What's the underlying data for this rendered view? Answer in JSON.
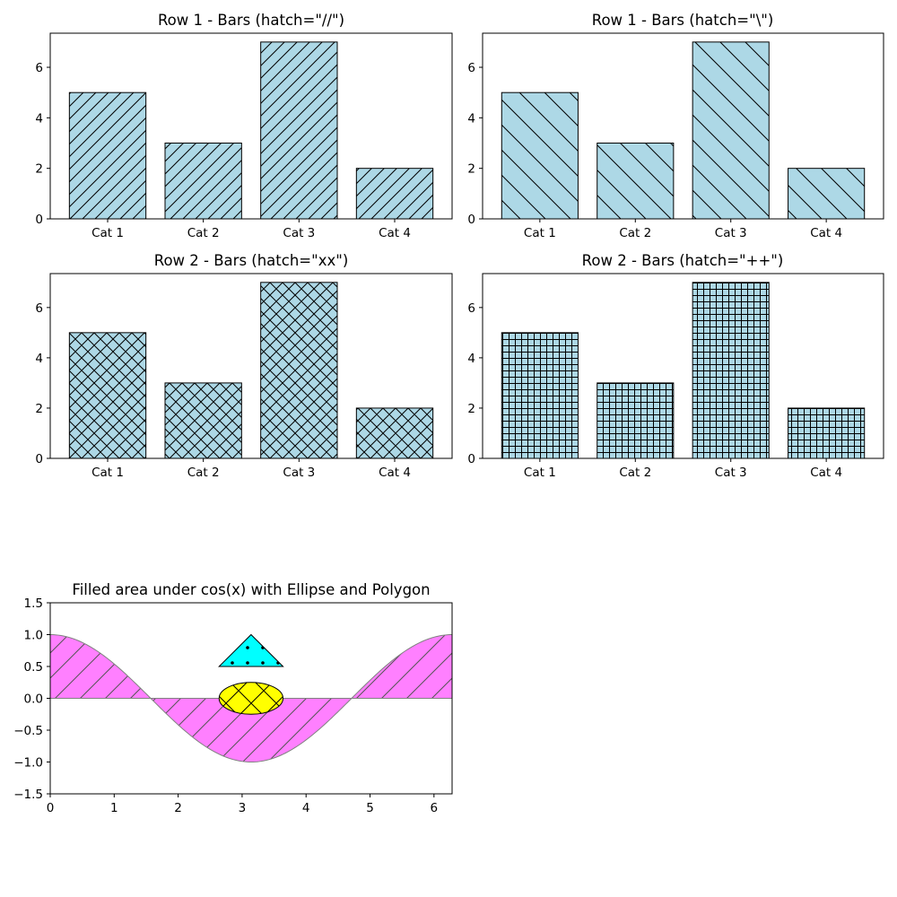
{
  "figure": {
    "background": "#ffffff",
    "bar_color": "#add8e6",
    "edge_color": "#000000"
  },
  "chart_data": [
    {
      "type": "bar",
      "title": "Row 1 - Bars (hatch=\"//\")",
      "hatch": "//",
      "categories": [
        "Cat 1",
        "Cat 2",
        "Cat 3",
        "Cat 4"
      ],
      "values": [
        5,
        3,
        7,
        2
      ],
      "ylim": [
        0,
        7.35
      ],
      "yticks": [
        "0",
        "2",
        "4",
        "6"
      ],
      "grid": false
    },
    {
      "type": "bar",
      "title": "Row 1 - Bars (hatch=\"\\\")",
      "hatch": "\\",
      "categories": [
        "Cat 1",
        "Cat 2",
        "Cat 3",
        "Cat 4"
      ],
      "values": [
        5,
        3,
        7,
        2
      ],
      "ylim": [
        0,
        7.35
      ],
      "yticks": [
        "0",
        "2",
        "4",
        "6"
      ],
      "grid": false
    },
    {
      "type": "bar",
      "title": "Row 2 - Bars (hatch=\"xx\")",
      "hatch": "xx",
      "categories": [
        "Cat 1",
        "Cat 2",
        "Cat 3",
        "Cat 4"
      ],
      "values": [
        5,
        3,
        7,
        2
      ],
      "ylim": [
        0,
        7.35
      ],
      "yticks": [
        "0",
        "2",
        "4",
        "6"
      ],
      "grid": false
    },
    {
      "type": "bar",
      "title": "Row 2 - Bars (hatch=\"++\")",
      "hatch": "++",
      "categories": [
        "Cat 1",
        "Cat 2",
        "Cat 3",
        "Cat 4"
      ],
      "values": [
        5,
        3,
        7,
        2
      ],
      "ylim": [
        0,
        7.35
      ],
      "yticks": [
        "0",
        "2",
        "4",
        "6"
      ],
      "grid": false
    },
    {
      "type": "area",
      "title": "Filled area under cos(x) with Ellipse and Polygon",
      "function": "cos(x)",
      "xlim": [
        0,
        6.283
      ],
      "ylim": [
        -1.5,
        1.5
      ],
      "xticks": [
        "0",
        "1",
        "2",
        "3",
        "4",
        "5",
        "6"
      ],
      "yticks": [
        "−1.5",
        "−1.0",
        "−0.5",
        "0.0",
        "0.5",
        "1.0",
        "1.5"
      ],
      "fill_color": "#ff80ff",
      "fill_edge_color": "#808080",
      "fill_hatch": "/",
      "ellipse": {
        "center": [
          3.14,
          0.0
        ],
        "width": 1.0,
        "height": 0.5,
        "color": "#ffff00",
        "hatch": "x"
      },
      "polygon": {
        "points": [
          [
            2.64,
            0.5
          ],
          [
            3.64,
            0.5
          ],
          [
            3.14,
            1.0
          ]
        ],
        "color": "#00ffff",
        "hatch": "."
      },
      "grid": false
    }
  ]
}
